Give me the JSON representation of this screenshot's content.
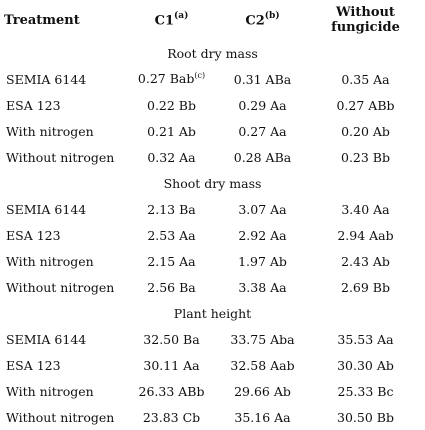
{
  "header": {
    "treatment": "Treatment",
    "c1": "C1",
    "c1_note": "(a)",
    "c2": "C2",
    "c2_note": "(b)",
    "without": "Without fungicide"
  },
  "sections": [
    {
      "title": "Root dry mass",
      "rows": [
        {
          "label": "SEMIA 6144",
          "c1": "0.27 Bab",
          "c1_note": "(c)",
          "c2": "0.31 ABa",
          "without": "0.35 Aa"
        },
        {
          "label": "ESA 123",
          "c1": "0.22 Bb",
          "c2": "0.29 Aa",
          "without": "0.27 ABb"
        },
        {
          "label": "With nitrogen",
          "c1": "0.21 Ab",
          "c2": "0.27 Aa",
          "without": "0.20 Ab"
        },
        {
          "label": "Without nitrogen",
          "c1": "0.32 Aa",
          "c2": "0.28 ABa",
          "without": "0.23 Bb"
        }
      ]
    },
    {
      "title": "Shoot dry mass",
      "rows": [
        {
          "label": "SEMIA 6144",
          "c1": "2.13 Ba",
          "c2": "3.07 Aa",
          "without": "3.40 Aa"
        },
        {
          "label": "ESA 123",
          "c1": "2.53 Aa",
          "c2": "2.92 Aa",
          "without": "2.94 Aab"
        },
        {
          "label": "With nitrogen",
          "c1": "2.15 Aa",
          "c2": "1.97 Ab",
          "without": "2.43 Ab"
        },
        {
          "label": "Without nitrogen",
          "c1": "2.56 Ba",
          "c2": "3.38 Aa",
          "without": "2.69 Bb"
        }
      ]
    },
    {
      "title": "Plant height",
      "rows": [
        {
          "label": "SEMIA 6144",
          "c1": "32.50 Ba",
          "c2": "33.75 Aba",
          "without": "35.53 Aa"
        },
        {
          "label": "ESA 123",
          "c1": "30.11 Aa",
          "c2": "32.58 Aab",
          "without": "30.30 Ab"
        },
        {
          "label": "With nitrogen",
          "c1": "26.33 ABb",
          "c2": "29.66 Ab",
          "without": "25.33 Bc"
        },
        {
          "label": "Without nitrogen",
          "c1": "23.83 Cb",
          "c2": "35.16 Aa",
          "without": "30.50 Bb"
        }
      ]
    }
  ]
}
